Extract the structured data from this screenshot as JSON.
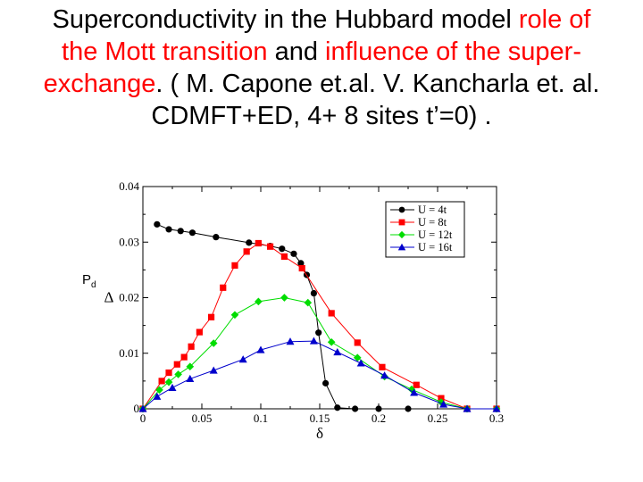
{
  "title": {
    "lines": [
      [
        {
          "text": "Superconductivity in the Hubbard model ",
          "color": "#000000"
        },
        {
          "text": "role of",
          "color": "#ff0000"
        }
      ],
      [
        {
          "text": "the Mott transition",
          "color": "#ff0000"
        },
        {
          "text": " and ",
          "color": "#000000"
        },
        {
          "text": "influence of the super-",
          "color": "#ff0000"
        }
      ],
      [
        {
          "text": "exchange",
          "color": "#ff0000"
        },
        {
          "text": ". (  M. Capone et.al.  V. Kancharla et. al.",
          "color": "#000000"
        }
      ],
      [
        {
          "text": "CDMFT+ED, 4+ 8 sites  t’=0) .",
          "color": "#000000"
        }
      ]
    ]
  },
  "annotation": {
    "text": "P",
    "subscript": "d"
  },
  "chart_data": {
    "type": "line",
    "title": "",
    "xlabel": "δ",
    "ylabel": "Δ",
    "xlim": [
      0,
      0.3
    ],
    "ylim": [
      0,
      0.04
    ],
    "xticks": [
      0,
      0.05,
      0.1,
      0.15,
      0.2,
      0.25,
      0.3
    ],
    "xtick_labels": [
      "0",
      "0.05",
      "0.1",
      "0.15",
      "0.2",
      "0.25",
      "0.3"
    ],
    "yticks": [
      0,
      0.01,
      0.02,
      0.03,
      0.04
    ],
    "ytick_labels": [
      "0",
      "0.01",
      "0.02",
      "0.03",
      "0.04"
    ],
    "grid": false,
    "legend_position": "top-right",
    "series": [
      {
        "name": "U = 4t",
        "color": "#000000",
        "marker": "circle",
        "points": [
          [
            0.012,
            0.0332
          ],
          [
            0.022,
            0.0323
          ],
          [
            0.032,
            0.032
          ],
          [
            0.042,
            0.0317
          ],
          [
            0.062,
            0.0309
          ],
          [
            0.09,
            0.0299
          ],
          [
            0.108,
            0.0293
          ],
          [
            0.118,
            0.0288
          ],
          [
            0.128,
            0.0279
          ],
          [
            0.134,
            0.0262
          ],
          [
            0.139,
            0.0241
          ],
          [
            0.145,
            0.0208
          ],
          [
            0.149,
            0.0137
          ],
          [
            0.155,
            0.0046
          ],
          [
            0.165,
            0.0002
          ],
          [
            0.18,
            0.0
          ],
          [
            0.2,
            0.0
          ],
          [
            0.225,
            0.0
          ],
          [
            0.275,
            0.0
          ],
          [
            0.3,
            0.0
          ]
        ]
      },
      {
        "name": "U = 8t",
        "color": "#ff0000",
        "marker": "square",
        "points": [
          [
            0.0,
            0.0
          ],
          [
            0.016,
            0.005
          ],
          [
            0.022,
            0.0065
          ],
          [
            0.029,
            0.008
          ],
          [
            0.035,
            0.0093
          ],
          [
            0.041,
            0.0112
          ],
          [
            0.048,
            0.0138
          ],
          [
            0.058,
            0.0165
          ],
          [
            0.068,
            0.0218
          ],
          [
            0.078,
            0.0258
          ],
          [
            0.088,
            0.0283
          ],
          [
            0.098,
            0.0298
          ],
          [
            0.108,
            0.0292
          ],
          [
            0.12,
            0.0274
          ],
          [
            0.135,
            0.0253
          ],
          [
            0.16,
            0.0172
          ],
          [
            0.182,
            0.0119
          ],
          [
            0.203,
            0.0075
          ],
          [
            0.232,
            0.0043
          ],
          [
            0.253,
            0.0019
          ],
          [
            0.275,
            0.0
          ],
          [
            0.3,
            0.0
          ]
        ]
      },
      {
        "name": "U = 12t",
        "color": "#00dd00",
        "marker": "diamond",
        "points": [
          [
            0.0,
            0.0
          ],
          [
            0.014,
            0.0034
          ],
          [
            0.022,
            0.0048
          ],
          [
            0.03,
            0.0062
          ],
          [
            0.04,
            0.0076
          ],
          [
            0.06,
            0.0118
          ],
          [
            0.078,
            0.0169
          ],
          [
            0.098,
            0.0193
          ],
          [
            0.12,
            0.02
          ],
          [
            0.14,
            0.0191
          ],
          [
            0.16,
            0.012
          ],
          [
            0.182,
            0.0092
          ],
          [
            0.205,
            0.0058
          ],
          [
            0.228,
            0.0035
          ],
          [
            0.253,
            0.0012
          ],
          [
            0.275,
            0.0
          ],
          [
            0.3,
            0.0
          ]
        ]
      },
      {
        "name": "U = 16t",
        "color": "#0000cc",
        "marker": "triangle",
        "points": [
          [
            0.0,
            0.0
          ],
          [
            0.012,
            0.0022
          ],
          [
            0.025,
            0.0038
          ],
          [
            0.04,
            0.0054
          ],
          [
            0.06,
            0.0069
          ],
          [
            0.085,
            0.0089
          ],
          [
            0.1,
            0.0106
          ],
          [
            0.125,
            0.0121
          ],
          [
            0.145,
            0.0122
          ],
          [
            0.165,
            0.0102
          ],
          [
            0.185,
            0.0082
          ],
          [
            0.205,
            0.006
          ],
          [
            0.23,
            0.0029
          ],
          [
            0.255,
            0.0008
          ],
          [
            0.275,
            0.0
          ],
          [
            0.3,
            0.0
          ]
        ]
      }
    ]
  }
}
